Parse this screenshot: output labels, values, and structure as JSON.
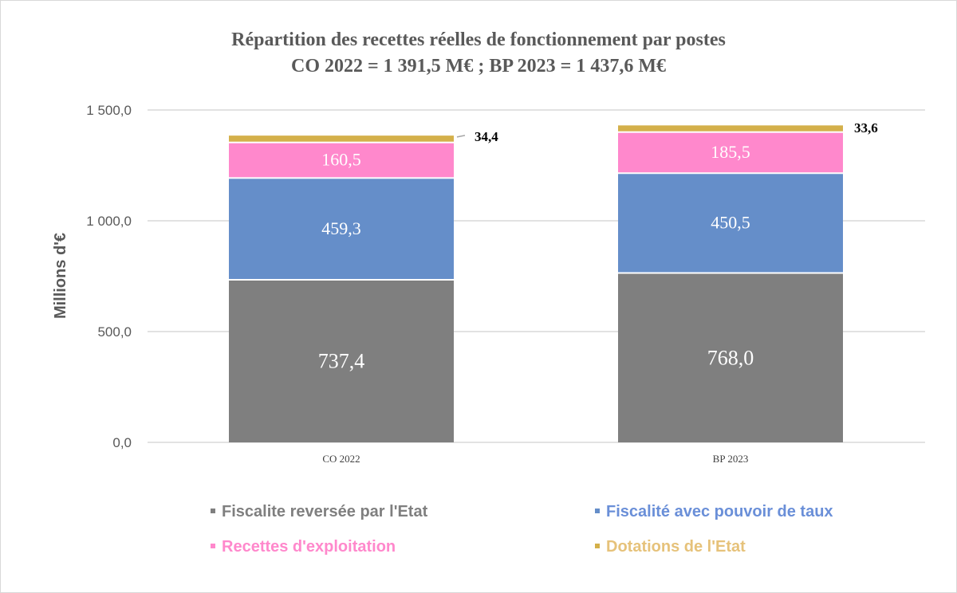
{
  "chart_data": {
    "type": "bar",
    "stacked": true,
    "title": "Répartition des recettes réelles de fonctionnement par postes",
    "subtitle": "CO 2022 = 1 391,5 M€ ; BP 2023 = 1 437,6 M€",
    "xlabel": "",
    "ylabel": "Millions d'€",
    "ylim": [
      0,
      1500
    ],
    "yticks": [
      0,
      500,
      1000,
      1500
    ],
    "ytick_labels": [
      "0,0",
      "500,0",
      "1 000,0",
      "1 500,0"
    ],
    "grid": true,
    "legend_position": "bottom",
    "categories": [
      "CO 2022",
      "BP 2023"
    ],
    "series": [
      {
        "name": "Fiscalite reversée par l'Etat",
        "color": "#7f7f7f",
        "values": [
          737.4,
          768.0
        ],
        "labels": [
          "737,4",
          "768,0"
        ]
      },
      {
        "name": "Fiscalité avec pouvoir de taux",
        "color": "#658ec9",
        "values": [
          459.3,
          450.5
        ],
        "labels": [
          "459,3",
          "450,5"
        ]
      },
      {
        "name": "Recettes d'exploitation",
        "color": "#ff88cc",
        "values": [
          160.5,
          185.5
        ],
        "labels": [
          "160,5",
          "185,5"
        ]
      },
      {
        "name": "Dotations de l'Etat",
        "color": "#d4b04a",
        "values": [
          34.4,
          33.6
        ],
        "labels": [
          "34,4",
          "33,6"
        ]
      }
    ],
    "legend_text_colors": [
      "#7f7f7f",
      "#6a8fd8",
      "#ff88cc",
      "#e6c27a"
    ]
  }
}
